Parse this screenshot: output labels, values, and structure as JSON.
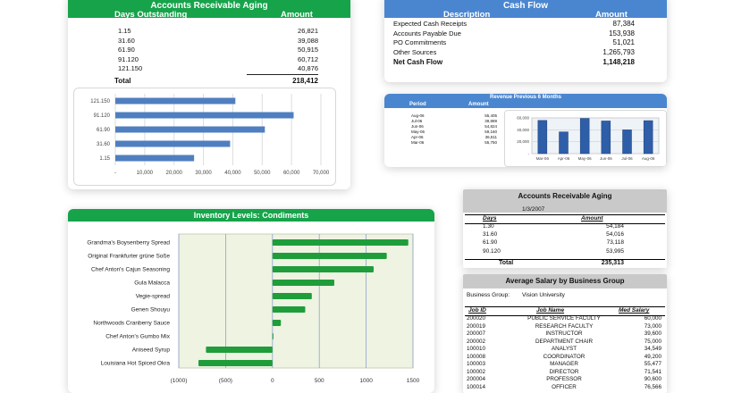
{
  "ar_aging": {
    "title": "Accounts Receivable Aging",
    "col_days": "Days Outstanding",
    "col_amount": "Amount",
    "rows": [
      {
        "days": "1.15",
        "amount": "26,821"
      },
      {
        "days": "31.60",
        "amount": "39,088"
      },
      {
        "days": "61.90",
        "amount": "50,915"
      },
      {
        "days": "91.120",
        "amount": "60,712"
      },
      {
        "days": "121.150",
        "amount": "40,876"
      }
    ],
    "total_label": "Total",
    "total_value": "218,412",
    "chart": {
      "categories": [
        "121.150",
        "91.120",
        "61.90",
        "31.60",
        "1.15"
      ],
      "values": [
        40876,
        60712,
        50915,
        39088,
        26821
      ],
      "ticks": [
        "-",
        "10,000",
        "20,000",
        "30,000",
        "40,000",
        "50,000",
        "60,000",
        "70,000"
      ],
      "color": "#4f7fc0"
    }
  },
  "cash_flow": {
    "title": "Cash Flow",
    "col_desc": "Description",
    "col_amount": "Amount",
    "rows": [
      {
        "label": "Expected Cash Receipts",
        "value": "87,384"
      },
      {
        "label": "Accounts Payable Due",
        "value": "153,938"
      },
      {
        "label": "PO Commitments",
        "value": "51,021"
      },
      {
        "label": "Other Sources",
        "value": "1,265,793"
      }
    ],
    "net_label": "Net Cash Flow",
    "net_value": "1,148,218"
  },
  "revenue": {
    "title": "Revenue Previous 6 Months",
    "col_period": "Period",
    "col_amount": "Amount",
    "rows": [
      {
        "period": "Aug-06",
        "amount": "55,405"
      },
      {
        "period": "Jul-06",
        "amount": "39,889"
      },
      {
        "period": "Jun-06",
        "amount": "54,824"
      },
      {
        "period": "May-06",
        "amount": "59,160"
      },
      {
        "period": "Apr-06",
        "amount": "36,511"
      },
      {
        "period": "Mar-06",
        "amount": "55,750"
      }
    ],
    "chart_data": {
      "type": "bar",
      "categories": [
        "Mar-06",
        "Apr-06",
        "May-06",
        "Jun-06",
        "Jul-06",
        "Aug-06"
      ],
      "values": [
        55750,
        36511,
        59160,
        54824,
        39889,
        55405
      ],
      "ylim": [
        0,
        60000
      ],
      "ticks": [
        "-",
        "20,000",
        "40,000",
        "60,000"
      ],
      "color": "#2f5ea8"
    }
  },
  "inventory": {
    "title": "Inventory Levels: Condiments",
    "chart_data": {
      "type": "bar",
      "categories": [
        "Grandma's Boysenberry Spread",
        "Original Frankfurter grüne Soße",
        "Chef Anton's Cajun Seasoning",
        "Gula Malacca",
        "Vegie-spread",
        "Genen Shouyu",
        "Northwoods Cranberry Sauce",
        "Chef Anton's Gumbo Mix",
        "Aniseed Syrup",
        "Louisiana Hot Spiced Okra"
      ],
      "values": [
        1450,
        1220,
        1080,
        660,
        420,
        350,
        90,
        10,
        -710,
        -790
      ],
      "xlim": [
        -1000,
        1500
      ],
      "ticks": [
        "(1000)",
        "(500)",
        "0",
        "500",
        "1000",
        "1500"
      ],
      "color": "#1f9d3a"
    }
  },
  "ar_aging2": {
    "title": "Accounts Receivable Aging",
    "date": "1/3/2007",
    "col_days": "Days",
    "col_amount": "Amount",
    "rows": [
      {
        "days": "1.30",
        "amount": "54,184"
      },
      {
        "days": "31.60",
        "amount": "54,016"
      },
      {
        "days": "61.90",
        "amount": "73,118"
      },
      {
        "days": "90.120",
        "amount": "53,995"
      }
    ],
    "total_label": "Total",
    "total_value": "235,313"
  },
  "salary": {
    "title": "Average Salary by Business Group",
    "group_label": "Business Group:",
    "group_value": "Vision University",
    "col_id": "Job ID",
    "col_name": "Job Name",
    "col_salary": "Med Salary",
    "rows": [
      {
        "id": "200020",
        "name": "PUBLIC SERVICE FACULTY",
        "salary": "60,000"
      },
      {
        "id": "200019",
        "name": "RESEARCH FACULTY",
        "salary": "73,000"
      },
      {
        "id": "200007",
        "name": "INSTRUCTOR",
        "salary": "39,600"
      },
      {
        "id": "200002",
        "name": "DEPARTMENT CHAIR",
        "salary": "75,000"
      },
      {
        "id": "100010",
        "name": "ANALYST",
        "salary": "34,549"
      },
      {
        "id": "100008",
        "name": "COORDINATOR",
        "salary": "49,200"
      },
      {
        "id": "100003",
        "name": "MANAGER",
        "salary": "55,477"
      },
      {
        "id": "100002",
        "name": "DIRECTOR",
        "salary": "71,541"
      },
      {
        "id": "200004",
        "name": "PROFESSOR",
        "salary": "90,600"
      },
      {
        "id": "100014",
        "name": "OFFICER",
        "salary": "76,566"
      }
    ]
  }
}
